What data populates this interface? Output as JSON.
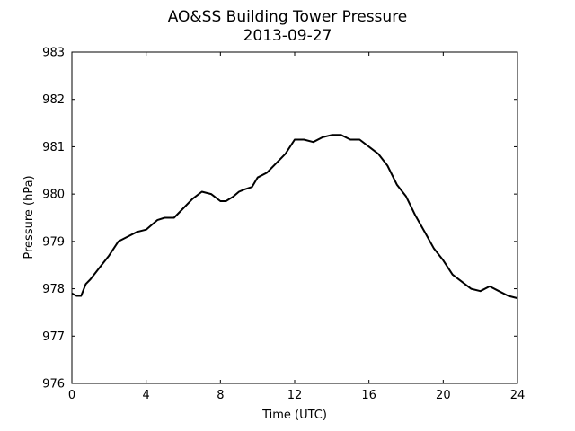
{
  "chart_data": {
    "type": "line",
    "title": "AO&SS Building Tower Pressure",
    "subtitle": "2013-09-27",
    "xlabel": "Time (UTC)",
    "ylabel": "Pressure (hPa)",
    "xlim": [
      0,
      24
    ],
    "ylim": [
      976,
      983
    ],
    "xticks": [
      0,
      4,
      8,
      12,
      16,
      20,
      24
    ],
    "yticks": [
      976,
      977,
      978,
      979,
      980,
      981,
      982,
      983
    ],
    "grid": false,
    "line_color": "#000000",
    "series": [
      {
        "x": [
          0,
          0.25,
          0.5,
          0.75,
          1.0,
          1.5,
          2.0,
          2.5,
          3.0,
          3.5,
          4.0,
          4.3,
          4.6,
          5.0,
          5.5,
          6.0,
          6.5,
          7.0,
          7.5,
          8.0,
          8.3,
          8.7,
          9.0,
          9.3,
          9.7,
          10.0,
          10.5,
          11.0,
          11.5,
          12.0,
          12.5,
          13.0,
          13.5,
          14.0,
          14.5,
          15.0,
          15.5,
          16.0,
          16.5,
          17.0,
          17.5,
          18.0,
          18.5,
          19.0,
          19.5,
          20.0,
          20.5,
          21.0,
          21.5,
          22.0,
          22.5,
          23.0,
          23.5,
          24.0
        ],
        "values": [
          977.9,
          977.85,
          977.85,
          978.1,
          978.2,
          978.45,
          978.7,
          979.0,
          979.1,
          979.2,
          979.25,
          979.35,
          979.45,
          979.5,
          979.5,
          979.7,
          979.9,
          980.05,
          980.0,
          979.85,
          979.85,
          979.95,
          980.05,
          980.1,
          980.15,
          980.35,
          980.45,
          980.65,
          980.85,
          981.15,
          981.15,
          981.1,
          981.2,
          981.25,
          981.25,
          981.15,
          981.15,
          981.0,
          980.85,
          980.6,
          980.2,
          979.95,
          979.55,
          979.2,
          978.85,
          978.6,
          978.3,
          978.15,
          978.0,
          977.95,
          978.05,
          977.95,
          977.85,
          977.8
        ]
      }
    ]
  }
}
